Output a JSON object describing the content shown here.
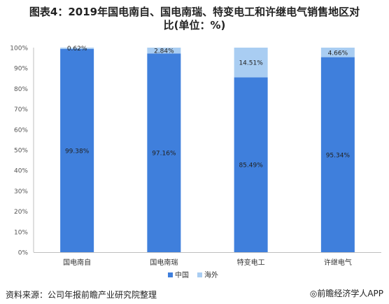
{
  "title": {
    "line1": "图表4：2019年国电南自、国电南瑞、特变电工和许继电气销售地区对",
    "line2": "比(单位：%)"
  },
  "source": "资料来源：公司年报前瞻产业研究院整理",
  "brand": "◎前瞻经济学人APP",
  "chart_data": {
    "type": "bar",
    "stacked": true,
    "categories": [
      "国电南自",
      "国电南瑞",
      "特变电工",
      "许继电气"
    ],
    "series": [
      {
        "name": "中国",
        "values": [
          99.38,
          97.16,
          85.49,
          95.34
        ],
        "labels": [
          "99.38%",
          "97.16%",
          "85.49%",
          "95.34%"
        ],
        "color": "#3f7fdc"
      },
      {
        "name": "海外",
        "values": [
          0.62,
          2.84,
          14.51,
          4.66
        ],
        "labels": [
          "0.62%",
          "2.84%",
          "14.51%",
          "4.66%"
        ],
        "color": "#a9cdf2"
      }
    ],
    "ylim": [
      0,
      100
    ],
    "yticks": [
      "0%",
      "10%",
      "20%",
      "30%",
      "40%",
      "50%",
      "60%",
      "70%",
      "80%",
      "90%",
      "100%"
    ],
    "legend_position": "bottom",
    "grid": false
  }
}
